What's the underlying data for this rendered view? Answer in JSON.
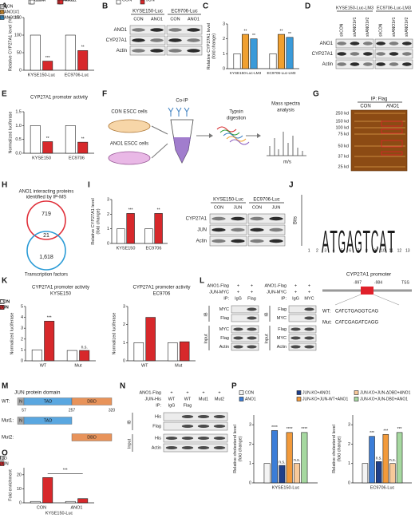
{
  "panels": {
    "A": {
      "label": "A",
      "type": "bar",
      "ylabel": [
        "Relative CYP27A1 level (%)"
      ],
      "categories": [
        "KYSE150-Luc",
        "EC9706-Luc"
      ],
      "series": [
        {
          "name": "CON",
          "color": "#ffffff",
          "values": [
            100,
            100
          ]
        },
        {
          "name": "ANO1",
          "color": "#d7282b",
          "values": [
            26,
            56
          ],
          "significance": [
            "***",
            "**"
          ]
        }
      ],
      "ylim": [
        0,
        150
      ],
      "yticks": [
        0,
        50,
        100,
        150
      ]
    },
    "B": {
      "label": "B",
      "groups": [
        "KYSE150-Luc",
        "EC9706-Luc"
      ],
      "lanes": [
        "CON",
        "ANO1",
        "CON",
        "ANO1"
      ],
      "rows": [
        "ANO1",
        "CYP27A1",
        "Actin"
      ]
    },
    "C": {
      "label": "C",
      "type": "bar",
      "ylabel": [
        "Relative CYP27A1 level",
        "(fold change)"
      ],
      "categories": [
        "KYSE150-Luc-LM3",
        "EC9706-Luc-LM3"
      ],
      "series": [
        {
          "name": "shCON",
          "color": "#ffffff",
          "values": [
            1,
            1
          ]
        },
        {
          "name": "shANO1#1",
          "color": "#f0a030",
          "values": [
            2.3,
            2.3
          ],
          "significance": [
            "**",
            "**"
          ]
        },
        {
          "name": "shANO1#2",
          "color": "#3a9ad9",
          "values": [
            2.0,
            2.1
          ],
          "significance": [
            "**",
            "**"
          ]
        }
      ],
      "ylim": [
        0,
        3
      ],
      "yticks": [
        0,
        1,
        2,
        3
      ]
    },
    "D": {
      "label": "D",
      "groups": [
        "KYSE150-Luc-LM3",
        "EC9706-Luc-LM3"
      ],
      "lanes": [
        "shCON",
        "shANO1#1",
        "shANO1#2",
        "shCON",
        "shANO1#1",
        "shANO1#2"
      ],
      "rows": [
        "ANO1",
        "CYP27A1",
        "Actin"
      ]
    },
    "E": {
      "label": "E",
      "type": "bar",
      "title": "CYP27A1 promoter activity",
      "ylabel": [
        "Normalized luciferase"
      ],
      "categories": [
        "KYSE150",
        "EC9706"
      ],
      "series": [
        {
          "name": "CON",
          "color": "#ffffff",
          "values": [
            1,
            1
          ]
        },
        {
          "name": "ANO1",
          "color": "#d7282b",
          "values": [
            0.42,
            0.4
          ],
          "significance": [
            "**",
            "**"
          ]
        }
      ],
      "ylim": [
        0,
        1.5
      ],
      "yticks": [
        {
          "value": 0,
          "label": "0.0"
        },
        0.5,
        {
          "value": 1,
          "label": "1.0"
        },
        1.5
      ]
    },
    "F": {
      "label": "F",
      "con_cells": "CON ESCC cells",
      "ano1_cells": "ANO1 ESCC cells",
      "coip": "Co-IP",
      "digestion": [
        "Typsin",
        "digestion"
      ],
      "mass_spec": [
        "Mass spectra",
        "analysis"
      ],
      "ms_axis": "m/s"
    },
    "G": {
      "label": "G",
      "ip": "IP: Flag",
      "lanes": [
        "CON",
        "ANO1"
      ],
      "markers": [
        "250 kd",
        "150 kd",
        "100 kd",
        "75 kd",
        "50 kd",
        "37 kd",
        "25 kd"
      ]
    },
    "H": {
      "label": "H",
      "title": [
        "ANO1 interacting proteins",
        "identified by IP-MS"
      ],
      "ip_ms_only": "719",
      "overlap": "21",
      "tf_only": "1,618",
      "tf_label": "Transcription factors"
    },
    "I": {
      "label": "I",
      "chart": {
        "type": "bar",
        "ylabel": [
          "Relative CYP27A1 level",
          "(fold change)"
        ],
        "categories": [
          "KYSE150",
          "EC9706"
        ],
        "series": [
          {
            "name": "CON",
            "color": "#ffffff",
            "values": [
              1,
              1
            ]
          },
          {
            "name": "JUN",
            "color": "#d7282b",
            "values": [
              2.05,
              2.05
            ],
            "significance": [
              "***",
              "**"
            ]
          }
        ],
        "ylim": [
          0,
          3
        ],
        "yticks": [
          0,
          1,
          2,
          3
        ]
      },
      "blot": {
        "groups": [
          "KYSE150-Luc",
          "EC9706-Luc"
        ],
        "lanes": [
          "CON",
          "JUN",
          "CON",
          "JUN"
        ],
        "rows": [
          "CYP27A1",
          "JUN",
          "Actin"
        ]
      }
    },
    "J": {
      "label": "J",
      "ylabel": "Bits",
      "letters": [
        null,
        null,
        "A",
        "T",
        "G",
        "A",
        "G",
        "T",
        "C",
        "A",
        "T",
        null,
        null
      ],
      "letter_colors": {
        "A": "#2e9e3a",
        "T": "#d7282b",
        "G": "#f0a030",
        "C": "#2f6fc0"
      },
      "positions": [
        1,
        2,
        3,
        4,
        5,
        6,
        7,
        8,
        9,
        10,
        11,
        12,
        13
      ],
      "promoter": {
        "title": "CYP27A1 promoter",
        "start": "-997",
        "end": "-984",
        "tss": "TSS",
        "wt_label": "WT:",
        "wt": "CATCTGAGGTCAG",
        "mut_label": "Mut:",
        "mut": [
          "CATC",
          "GAGATCAG",
          "G"
        ]
      }
    },
    "K": {
      "label": "K",
      "charts": [
        {
          "type": "bar",
          "title": "CYP27A1 promoter activity",
          "subtitle": "KYSE150",
          "ylabel": [
            "Normalized luciferase"
          ],
          "categories": [
            "WT",
            "Mut"
          ],
          "series": [
            {
              "name": "CON",
              "color": "#ffffff",
              "values": [
                1,
                0.95
              ]
            },
            {
              "name": "JUN",
              "color": "#d7282b",
              "values": [
                3.65,
                0.95
              ],
              "significance": [
                "***",
                "n.s."
              ]
            }
          ],
          "ylim": [
            0,
            5
          ],
          "yticks": [
            0,
            1,
            2,
            3,
            4,
            5
          ]
        },
        {
          "type": "bar",
          "title": "CYP27A1 promoter activity",
          "subtitle": "EC9706",
          "ylabel": [
            "Normalized luciferase"
          ],
          "categories": [
            "WT",
            "Mut"
          ],
          "series": [
            {
              "name": "CON",
              "color": "#ffffff",
              "values": [
                1,
                1
              ]
            },
            {
              "name": "JUN",
              "color": "#d7282b",
              "values": [
                2.4,
                1.05
              ]
            }
          ],
          "ylim": [
            0,
            3
          ],
          "yticks": [
            0,
            1,
            2,
            3
          ]
        }
      ]
    },
    "L": {
      "label": "L",
      "blots": [
        {
          "conditions": [
            {
              "label": "ANO1-Flag",
              "values": [
                "+",
                "+"
              ]
            },
            {
              "label": "JUN-MYC",
              "values": [
                "+",
                "+"
              ]
            },
            {
              "label": "IP:",
              "values": [
                "IgG",
                "Flag"
              ]
            }
          ],
          "sections": [
            {
              "label": "IB",
              "rows": [
                "MYC",
                "Flag"
              ]
            },
            {
              "label": "Input",
              "rows": [
                "MYC",
                "Flag",
                "Actin"
              ]
            }
          ]
        },
        {
          "conditions": [
            {
              "label": "ANO1-Flag",
              "values": [
                "+",
                "+"
              ]
            },
            {
              "label": "JUN-MYC",
              "values": [
                "+",
                "+"
              ]
            },
            {
              "label": "IP:",
              "values": [
                "IgG",
                "MYC"
              ]
            }
          ],
          "sections": [
            {
              "label": "IB",
              "rows": [
                "Flag",
                "MYC"
              ]
            },
            {
              "label": "Input",
              "rows": [
                "Flag",
                "MYC",
                "Actin"
              ]
            }
          ]
        }
      ]
    },
    "M": {
      "label": "M",
      "title": "JUN protein domain",
      "rows": [
        "WT:",
        "Mut1:",
        "Mut2:"
      ],
      "domains": [
        "N",
        "TAD",
        "DBD"
      ],
      "positions": [
        "57",
        "257",
        "320"
      ]
    },
    "N": {
      "label": "N",
      "conditions": [
        {
          "label": "ANO1-Flag",
          "values": [
            "+",
            "+",
            "+",
            "+"
          ]
        },
        {
          "label": "JUN-His",
          "values": [
            "WT",
            "WT",
            "Mut1",
            "Mut2"
          ]
        },
        {
          "label": "IP:",
          "values": [
            "IgG",
            "Flag",
            null,
            null
          ]
        }
      ],
      "sections": [
        {
          "label": "IB",
          "rows": [
            "His",
            "Flag"
          ]
        },
        {
          "label": "Input",
          "rows": [
            "His",
            "Actin"
          ]
        }
      ]
    },
    "O": {
      "label": "O",
      "type": "bar",
      "ylabel": [
        "Fold enrichment"
      ],
      "xlabel": "KYSE150-Luc",
      "categories": [
        "CON",
        "ANO1"
      ],
      "series": [
        {
          "name": "IgG",
          "color": "#ffffff",
          "values": [
            1,
            1
          ]
        },
        {
          "name": "JUN",
          "color": "#d7282b",
          "values": [
            18,
            3
          ]
        }
      ],
      "bracket": "***",
      "ylim": [
        0,
        25
      ],
      "yticks": [
        0,
        10,
        20
      ]
    },
    "P": {
      "label": "P",
      "charts": [
        {
          "type": "bar",
          "ylabel": [
            "Relative cholesterol level",
            "(fold change)"
          ],
          "categories": [
            "KYSE150-Luc"
          ],
          "series": [
            {
              "name": "CON",
              "color": "#f4f4f4",
              "values": [
                1
              ]
            },
            {
              "name": "ANO1",
              "color": "#3b7dd8",
              "values": [
                2.7
              ],
              "significance": [
                "****"
              ]
            },
            {
              "name": "JUN-KO+ANO1",
              "color": "#1f3f8a",
              "values": [
                0.9
              ],
              "significance": [
                "n.s."
              ]
            },
            {
              "name": "JUN-KO+JUN-WT+ANO1",
              "color": "#f29a3b",
              "values": [
                2.6
              ],
              "significance": [
                "****"
              ]
            },
            {
              "name": "JUN-KO+JUN-ΔDBD+ANO1",
              "color": "#f7c99a",
              "values": [
                1.0
              ],
              "significance": [
                "n.s."
              ]
            },
            {
              "name": "JUN-KO+JUN-DBD+ANO1",
              "color": "#a6d8a0",
              "values": [
                2.6
              ],
              "significance": [
                "****"
              ]
            }
          ],
          "ylim": [
            0,
            3.5
          ],
          "yticks": [
            0,
            1,
            2,
            3
          ]
        },
        {
          "type": "bar",
          "ylabel": [
            "Relative cholesterol level",
            "(fold change)"
          ],
          "categories": [
            "EC9706-Luc"
          ],
          "series": [
            {
              "color": "#f4f4f4",
              "values": [
                1
              ]
            },
            {
              "color": "#3b7dd8",
              "values": [
                2.4
              ],
              "significance": [
                "***"
              ]
            },
            {
              "color": "#1f3f8a",
              "values": [
                1.1
              ],
              "significance": [
                "n.s."
              ]
            },
            {
              "color": "#f29a3b",
              "values": [
                2.5
              ],
              "significance": [
                "***"
              ]
            },
            {
              "color": "#f7c99a",
              "values": [
                1.0
              ],
              "significance": [
                "n.s."
              ]
            },
            {
              "color": "#a6d8a0",
              "values": [
                2.6
              ],
              "significance": [
                "***"
              ]
            }
          ],
          "ylim": [
            0,
            3.5
          ],
          "yticks": [
            0,
            1,
            2,
            3
          ]
        }
      ]
    }
  }
}
